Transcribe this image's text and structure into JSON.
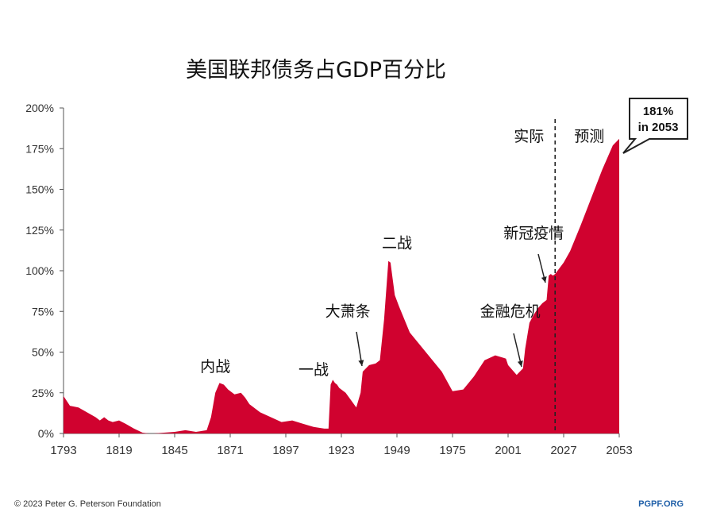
{
  "chart_data": {
    "type": "area",
    "title": "美国联邦债务占GDP百分比",
    "xlabel": "",
    "ylabel": "",
    "xlim": [
      1793,
      2053
    ],
    "ylim": [
      0,
      200
    ],
    "grid": false,
    "color": "#d0022f",
    "x_ticks": [
      1793,
      1819,
      1845,
      1871,
      1897,
      1923,
      1949,
      1975,
      2001,
      2027,
      2053
    ],
    "x_tick_labels": [
      "1793",
      "1819",
      "1845",
      "1871",
      "1897",
      "1923",
      "1949",
      "1975",
      "2001",
      "2027",
      "2053"
    ],
    "y_ticks": [
      0,
      25,
      50,
      75,
      100,
      125,
      150,
      175,
      200
    ],
    "y_tick_labels": [
      "0%",
      "25%",
      "50%",
      "75%",
      "100%",
      "125%",
      "150%",
      "175%",
      "200%"
    ],
    "divider_year": 2023,
    "divider_labels": {
      "left": "实际",
      "right": "预测"
    },
    "series": [
      {
        "x": [
          1793,
          1796,
          1800,
          1804,
          1808,
          1810,
          1812,
          1814,
          1816,
          1819,
          1822,
          1826,
          1830,
          1833,
          1835,
          1840,
          1845,
          1850,
          1855,
          1860,
          1862,
          1864,
          1866,
          1868,
          1870,
          1873,
          1876,
          1878,
          1880,
          1885,
          1890,
          1895,
          1900,
          1905,
          1910,
          1915,
          1917,
          1918,
          1919,
          1920,
          1921,
          1922,
          1925,
          1930,
          1932,
          1933,
          1936,
          1939,
          1941,
          1943,
          1945,
          1946,
          1947,
          1948,
          1950,
          1955,
          1960,
          1965,
          1970,
          1975,
          1980,
          1985,
          1990,
          1995,
          2000,
          2001,
          2005,
          2008,
          2009,
          2010,
          2011,
          2013,
          2015,
          2017,
          2019,
          2020,
          2021,
          2022,
          2023,
          2027,
          2030,
          2035,
          2040,
          2045,
          2050,
          2053
        ],
        "values": [
          23,
          17,
          16,
          13,
          10,
          8,
          10,
          8,
          7,
          8,
          6,
          3,
          0.5,
          0,
          0,
          0.5,
          1,
          2,
          1,
          2,
          10,
          25,
          31,
          30,
          27,
          24,
          25,
          22,
          18,
          13,
          10,
          7,
          8,
          6,
          4,
          3,
          3,
          30,
          33,
          31,
          30,
          28,
          25,
          16,
          25,
          38,
          42,
          43,
          45,
          70,
          106,
          105,
          95,
          85,
          78,
          62,
          54,
          46,
          38,
          26,
          27,
          35,
          45,
          48,
          46,
          42,
          36,
          40,
          52,
          60,
          68,
          73,
          77,
          80,
          82,
          97,
          98,
          97,
          98,
          105,
          112,
          128,
          145,
          162,
          177,
          181
        ]
      }
    ],
    "annotations": [
      {
        "text": "内战",
        "year": 1864,
        "value": 38
      },
      {
        "text": "一战",
        "year": 1910,
        "value": 36
      },
      {
        "text": "大萧条",
        "year": 1926,
        "value": 72
      },
      {
        "text": "二战",
        "year": 1949,
        "value": 114
      },
      {
        "text": "金融危机",
        "year": 2002,
        "value": 72
      },
      {
        "text": "新冠疫情",
        "year": 2013,
        "value": 120
      }
    ],
    "callout": {
      "line1": "181%",
      "line2": "in 2053"
    }
  },
  "footer": {
    "left": "© 2023 Peter G. Peterson Foundation",
    "right": "PGPF.ORG"
  }
}
